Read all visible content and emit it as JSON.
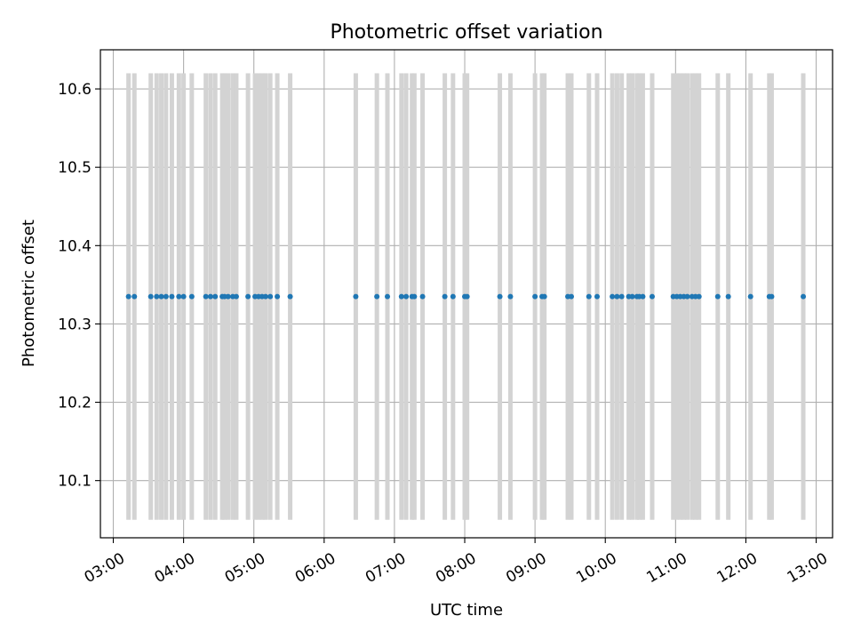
{
  "chart_data": {
    "type": "scatter",
    "title": "Photometric offset variation",
    "xlabel": "UTC time",
    "ylabel": "Photometric offset",
    "xlim": [
      "02:49",
      "13:14"
    ],
    "ylim": [
      10.027,
      10.65
    ],
    "x_ticks": [
      "03:00",
      "04:00",
      "05:00",
      "06:00",
      "07:00",
      "08:00",
      "09:00",
      "10:00",
      "11:00",
      "12:00",
      "13:00"
    ],
    "y_ticks": [
      "10.1",
      "10.2",
      "10.3",
      "10.4",
      "10.5",
      "10.6"
    ],
    "grid": true,
    "band_range": [
      10.05,
      10.62
    ],
    "band_color": "#d3d3d3",
    "point_color": "#1f77b4",
    "series": [
      {
        "x": [
          "03:13",
          "03:18",
          "03:32",
          "03:37",
          "03:41",
          "03:45",
          "03:50",
          "03:56",
          "04:00",
          "04:07",
          "04:19",
          "04:23",
          "04:27",
          "04:33",
          "04:35",
          "04:38",
          "04:42",
          "04:45",
          "04:55",
          "05:01",
          "05:04",
          "05:07",
          "05:10",
          "05:14",
          "05:20",
          "05:31",
          "06:27",
          "06:45",
          "06:54",
          "07:06",
          "07:10",
          "07:15",
          "07:17",
          "07:24",
          "07:43",
          "07:50",
          "08:00",
          "08:02",
          "08:30",
          "08:39",
          "09:00",
          "09:06",
          "09:08",
          "09:28",
          "09:31",
          "09:46",
          "09:53",
          "10:06",
          "10:10",
          "10:14",
          "10:20",
          "10:23",
          "10:27",
          "10:29",
          "10:32",
          "10:40",
          "10:58",
          "11:01",
          "11:04",
          "11:07",
          "11:10",
          "11:14",
          "11:17",
          "11:20",
          "11:36",
          "11:45",
          "12:04",
          "12:20",
          "12:22",
          "12:49"
        ],
        "y": [
          10.335,
          10.335,
          10.335,
          10.335,
          10.335,
          10.335,
          10.335,
          10.335,
          10.335,
          10.335,
          10.335,
          10.335,
          10.335,
          10.335,
          10.335,
          10.335,
          10.335,
          10.335,
          10.335,
          10.335,
          10.335,
          10.335,
          10.335,
          10.335,
          10.335,
          10.335,
          10.335,
          10.335,
          10.335,
          10.335,
          10.335,
          10.335,
          10.335,
          10.335,
          10.335,
          10.335,
          10.335,
          10.335,
          10.335,
          10.335,
          10.335,
          10.335,
          10.335,
          10.335,
          10.335,
          10.335,
          10.335,
          10.335,
          10.335,
          10.335,
          10.335,
          10.335,
          10.335,
          10.335,
          10.335,
          10.335,
          10.335,
          10.335,
          10.335,
          10.335,
          10.335,
          10.335,
          10.335,
          10.335,
          10.335,
          10.335,
          10.335,
          10.335,
          10.335,
          10.335
        ]
      }
    ]
  }
}
